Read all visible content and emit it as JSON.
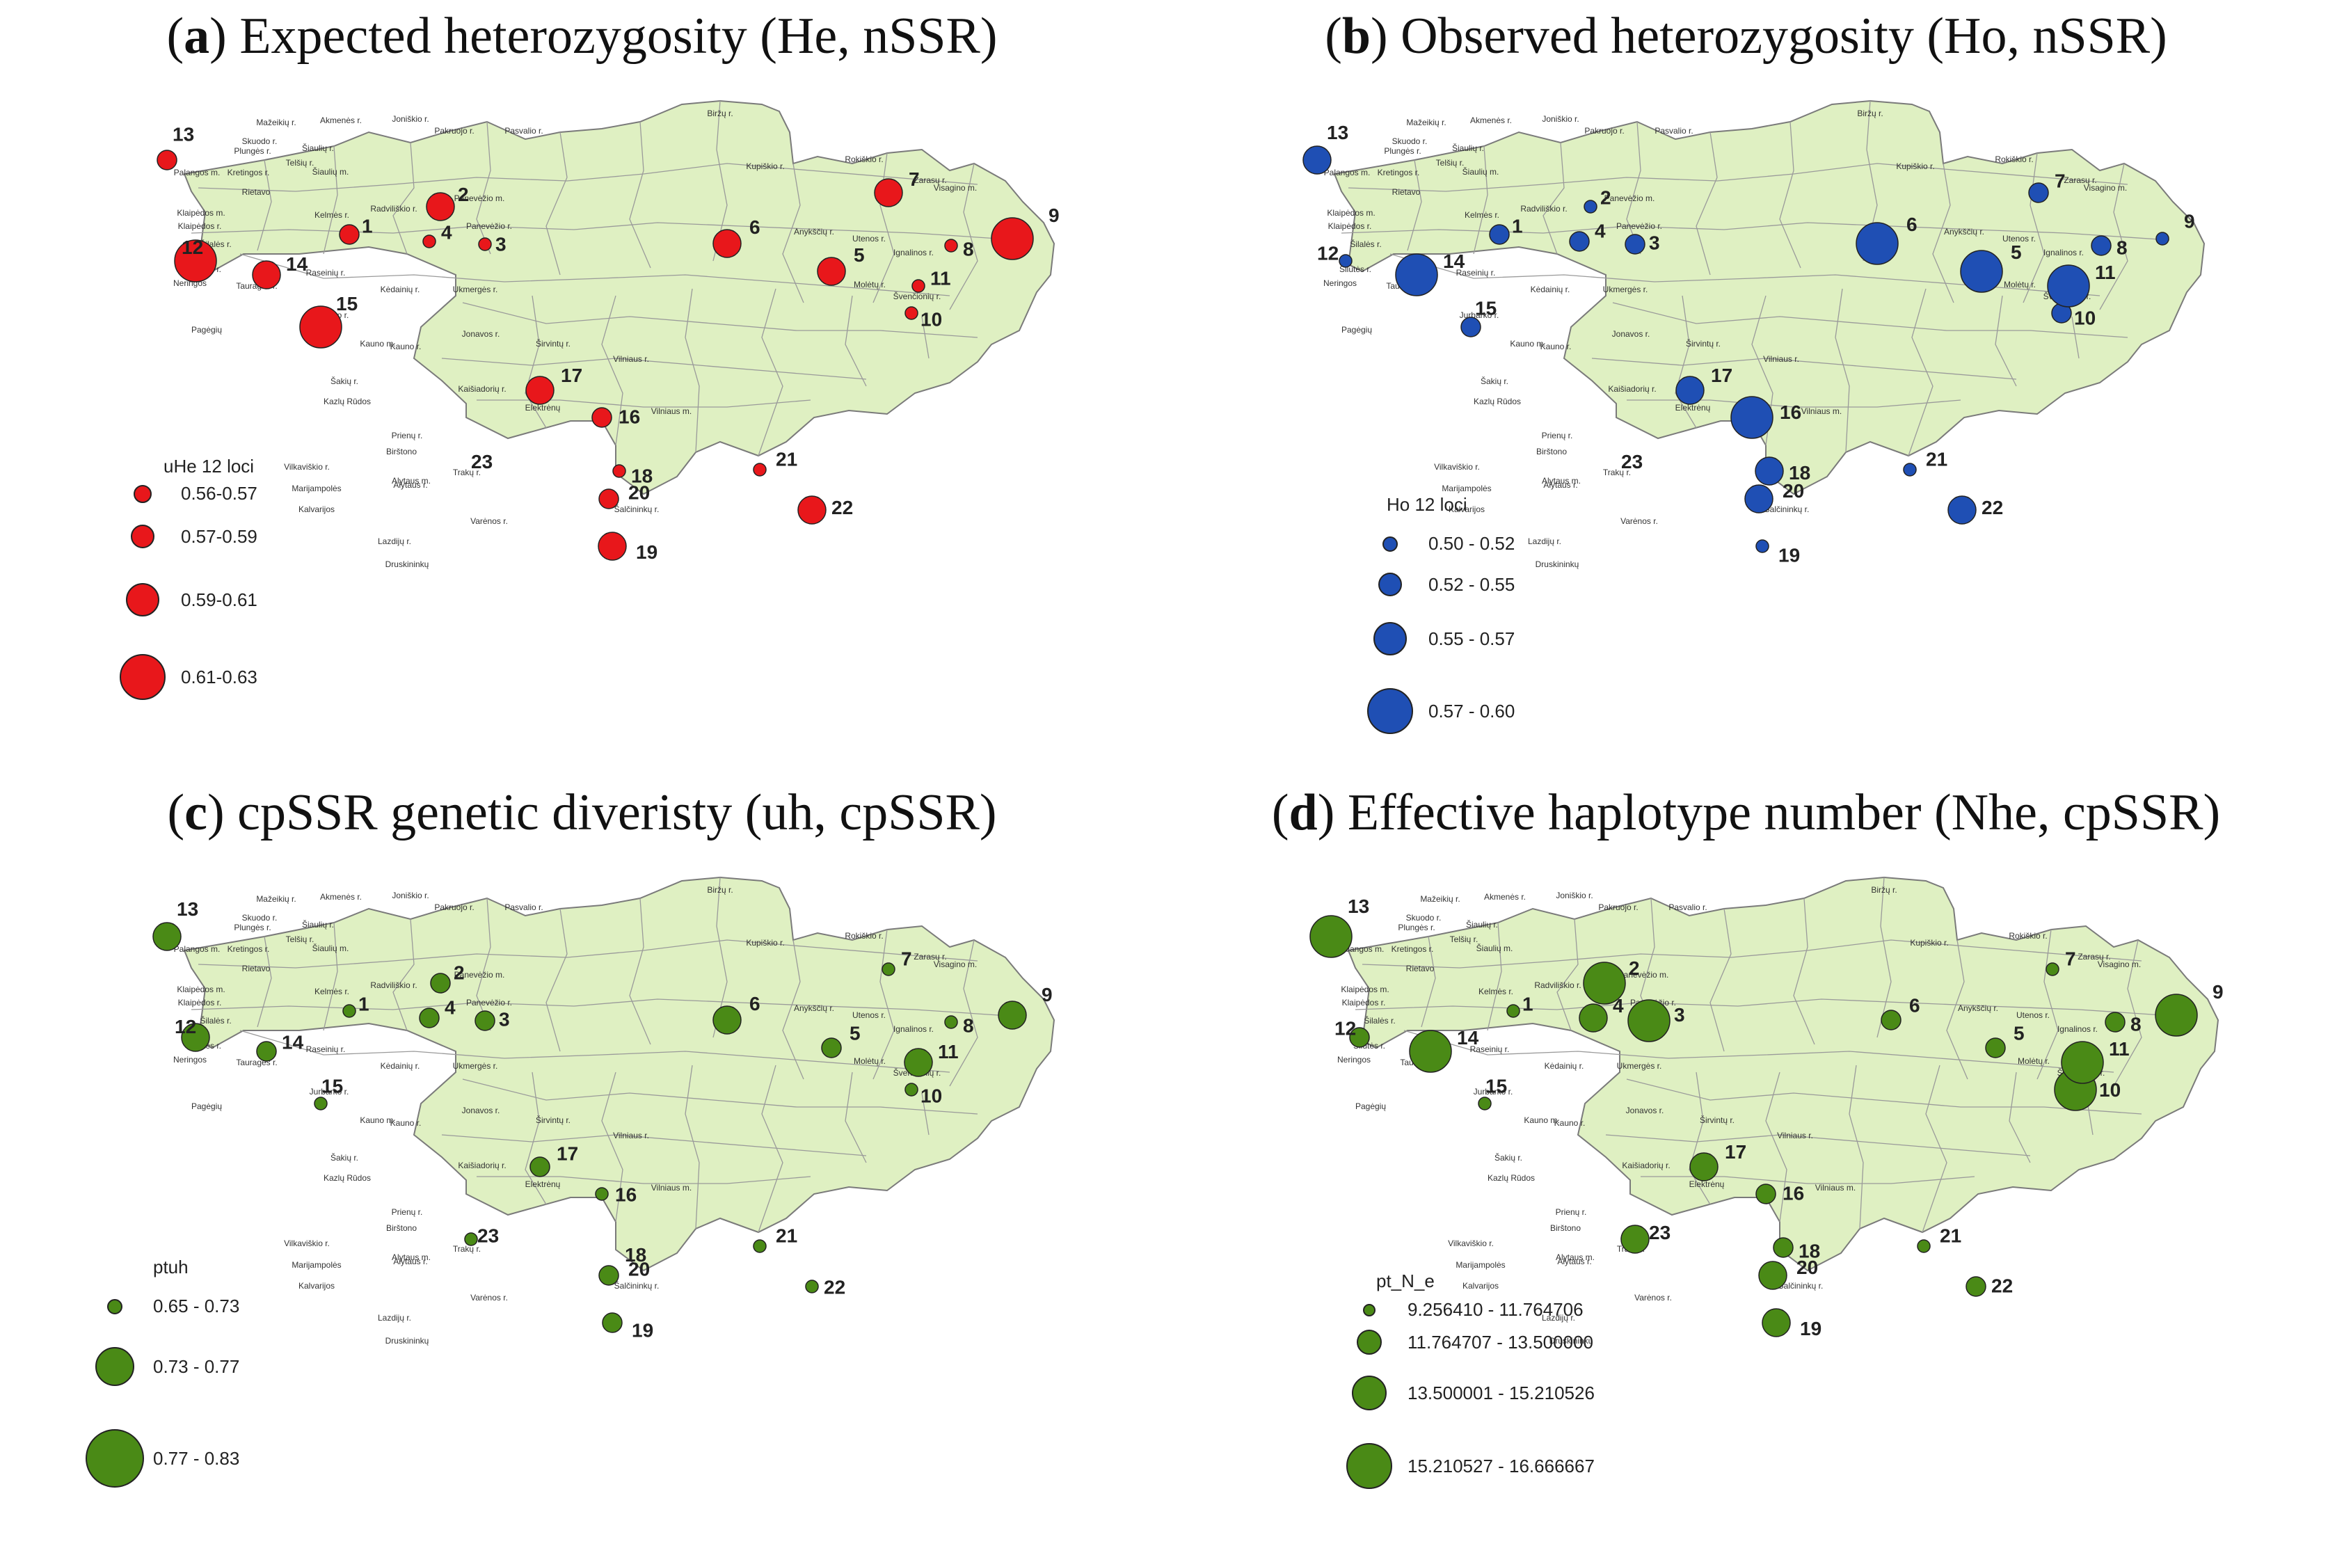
{
  "panels": [
    {
      "letter": "a",
      "title": "Expected heterozygosity (He, nSSR)",
      "color": "#e8171b",
      "legend_title": "uHe 12 loci",
      "legend": [
        "0.56-0.57",
        "0.57-0.59",
        "0.59-0.61",
        "0.61-0.63"
      ],
      "sites": [
        {
          "id": "1",
          "cls": 2
        },
        {
          "id": "2",
          "cls": 3
        },
        {
          "id": "3",
          "cls": 1
        },
        {
          "id": "4",
          "cls": 1
        },
        {
          "id": "5",
          "cls": 3
        },
        {
          "id": "6",
          "cls": 3
        },
        {
          "id": "7",
          "cls": 3
        },
        {
          "id": "8",
          "cls": 1
        },
        {
          "id": "9",
          "cls": 4
        },
        {
          "id": "10",
          "cls": 1
        },
        {
          "id": "11",
          "cls": 1
        },
        {
          "id": "12",
          "cls": 4
        },
        {
          "id": "13",
          "cls": 2
        },
        {
          "id": "14",
          "cls": 3
        },
        {
          "id": "15",
          "cls": 4
        },
        {
          "id": "16",
          "cls": 2
        },
        {
          "id": "17",
          "cls": 3
        },
        {
          "id": "18",
          "cls": 1
        },
        {
          "id": "19",
          "cls": 3
        },
        {
          "id": "20",
          "cls": 2
        },
        {
          "id": "21",
          "cls": 1
        },
        {
          "id": "22",
          "cls": 3
        },
        {
          "id": "23",
          "cls": 0
        }
      ]
    },
    {
      "letter": "b",
      "title": "Observed heterozygosity (Ho, nSSR)",
      "color": "#1f4fb4",
      "legend_title": "Ho 12 loci",
      "legend": [
        "0.50 - 0.52",
        "0.52 - 0.55",
        "0.55 - 0.57",
        "0.57 - 0.60"
      ],
      "sites": [
        {
          "id": "1",
          "cls": 2
        },
        {
          "id": "2",
          "cls": 1
        },
        {
          "id": "3",
          "cls": 2
        },
        {
          "id": "4",
          "cls": 2
        },
        {
          "id": "5",
          "cls": 4
        },
        {
          "id": "6",
          "cls": 4
        },
        {
          "id": "7",
          "cls": 2
        },
        {
          "id": "8",
          "cls": 2
        },
        {
          "id": "9",
          "cls": 1
        },
        {
          "id": "10",
          "cls": 2
        },
        {
          "id": "11",
          "cls": 4
        },
        {
          "id": "12",
          "cls": 1
        },
        {
          "id": "13",
          "cls": 3
        },
        {
          "id": "14",
          "cls": 4
        },
        {
          "id": "15",
          "cls": 2
        },
        {
          "id": "16",
          "cls": 4
        },
        {
          "id": "17",
          "cls": 3
        },
        {
          "id": "18",
          "cls": 3
        },
        {
          "id": "19",
          "cls": 1
        },
        {
          "id": "20",
          "cls": 3
        },
        {
          "id": "21",
          "cls": 1
        },
        {
          "id": "22",
          "cls": 3
        },
        {
          "id": "23",
          "cls": 0
        }
      ]
    },
    {
      "letter": "c",
      "title": "cpSSR genetic diveristy (uh, cpSSR)",
      "color": "#4a8a16",
      "legend_title": "ptuh",
      "legend": [
        "0.65 - 0.73",
        "0.73 - 0.77",
        "0.77 - 0.83"
      ],
      "sites": [
        {
          "id": "1",
          "cls": 1
        },
        {
          "id": "2",
          "cls": 2
        },
        {
          "id": "3",
          "cls": 2
        },
        {
          "id": "4",
          "cls": 2
        },
        {
          "id": "5",
          "cls": 2
        },
        {
          "id": "6",
          "cls": 3
        },
        {
          "id": "7",
          "cls": 1
        },
        {
          "id": "8",
          "cls": 1
        },
        {
          "id": "9",
          "cls": 3
        },
        {
          "id": "10",
          "cls": 1
        },
        {
          "id": "11",
          "cls": 3
        },
        {
          "id": "12",
          "cls": 3
        },
        {
          "id": "13",
          "cls": 3
        },
        {
          "id": "14",
          "cls": 2
        },
        {
          "id": "15",
          "cls": 1
        },
        {
          "id": "16",
          "cls": 1
        },
        {
          "id": "17",
          "cls": 2
        },
        {
          "id": "18",
          "cls": 0
        },
        {
          "id": "19",
          "cls": 2
        },
        {
          "id": "20",
          "cls": 2
        },
        {
          "id": "21",
          "cls": 1
        },
        {
          "id": "22",
          "cls": 1
        },
        {
          "id": "23",
          "cls": 1
        }
      ]
    },
    {
      "letter": "d",
      "title": "Effective haplotype number (Nhe, cpSSR)",
      "color": "#4a8a16",
      "legend_title": "pt_N_e",
      "legend": [
        "9.256410 - 11.764706",
        "11.764707 - 13.500000",
        "13.500001 - 15.210526",
        "15.210527 - 16.666667"
      ],
      "sites": [
        {
          "id": "1",
          "cls": 1
        },
        {
          "id": "2",
          "cls": 4
        },
        {
          "id": "3",
          "cls": 4
        },
        {
          "id": "4",
          "cls": 3
        },
        {
          "id": "5",
          "cls": 2
        },
        {
          "id": "6",
          "cls": 2
        },
        {
          "id": "7",
          "cls": 1
        },
        {
          "id": "8",
          "cls": 2
        },
        {
          "id": "9",
          "cls": 4
        },
        {
          "id": "10",
          "cls": 4
        },
        {
          "id": "11",
          "cls": 4
        },
        {
          "id": "12",
          "cls": 2
        },
        {
          "id": "13",
          "cls": 4
        },
        {
          "id": "14",
          "cls": 4
        },
        {
          "id": "15",
          "cls": 1
        },
        {
          "id": "16",
          "cls": 2
        },
        {
          "id": "17",
          "cls": 3
        },
        {
          "id": "18",
          "cls": 2
        },
        {
          "id": "19",
          "cls": 3
        },
        {
          "id": "20",
          "cls": 3
        },
        {
          "id": "21",
          "cls": 1
        },
        {
          "id": "22",
          "cls": 2
        },
        {
          "id": "23",
          "cls": 3
        }
      ]
    }
  ],
  "districts": [
    "Skuodo r.",
    "Mažeikių r.",
    "Akmenės r.",
    "Joniškio r.",
    "Biržų r.",
    "Pasvalio r.",
    "Pakruojo r.",
    "Šiaulių r.",
    "Šiaulių m.",
    "Kupiškio r.",
    "Rokiškio r.",
    "Zarasų r.",
    "Visagino m.",
    "Palangos m.",
    "Kretingos r.",
    "Plungės r.",
    "Telšių r.",
    "Rietavo",
    "Kelmės r.",
    "Radviliškio r.",
    "Panevėžio m.",
    "Panevėžio r.",
    "Anykščių r.",
    "Utenos r.",
    "Ignalinos r.",
    "Klaipėdos m.",
    "Klaipėdos r.",
    "Šilalės r.",
    "Šilutės r.",
    "Neringos",
    "Tauragės r.",
    "Raseinių r.",
    "Kėdainių r.",
    "Ukmergės r.",
    "Molėtų r.",
    "Švenčionių r.",
    "Jurbarko r.",
    "Pagėgių",
    "Jonavos r.",
    "Širvintų r.",
    "Kauno r.",
    "Kauno m.",
    "Vilniaus r.",
    "Šakių r.",
    "Kaišiadorių r.",
    "Kazlų Rūdos",
    "Elektrėnų",
    "Vilniaus m.",
    "Vilkaviškio r.",
    "Marijampolės",
    "Prienų r.",
    "Birštono",
    "Trakų r.",
    "Alytaus r.",
    "Alytaus m.",
    "Kalvarijos",
    "Šalčininkų r.",
    "Lazdijų r.",
    "Varėnos r.",
    "Druskininkų"
  ]
}
